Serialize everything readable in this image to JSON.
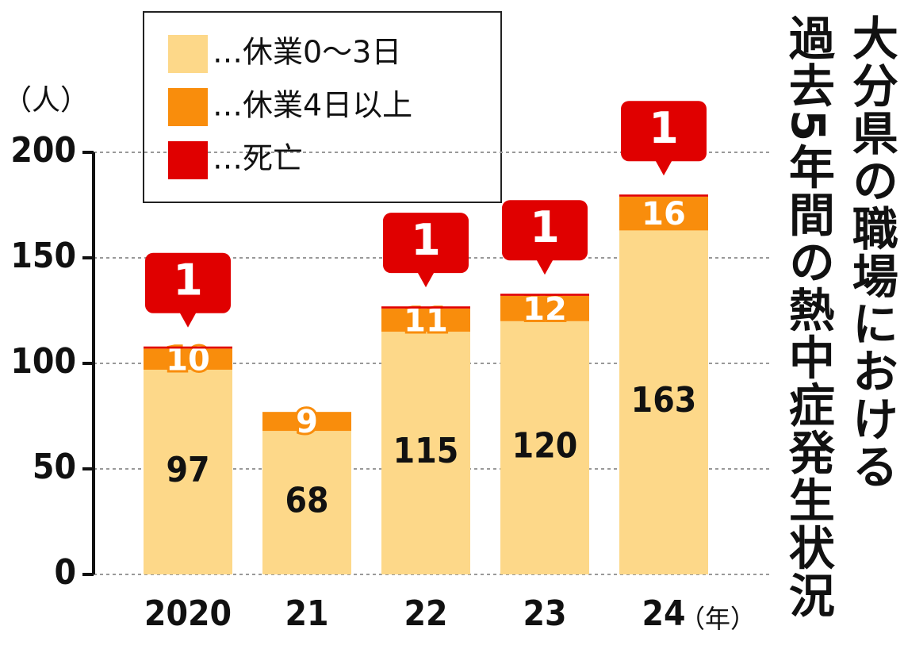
{
  "chart_data": {
    "type": "stacked_bar",
    "title": "大分県の職場における",
    "subtitle": "過去5年間の熱中症発生状況",
    "y_label": "（人）",
    "x_label": "（年）",
    "categories": [
      "2020",
      "21",
      "22",
      "23",
      "24"
    ],
    "series": [
      {
        "name": "…休業0～3日",
        "color": "#fdd889",
        "values": [
          97,
          68,
          115,
          120,
          163
        ]
      },
      {
        "name": "…休業4日以上",
        "color": "#f98d0c",
        "values": [
          10,
          9,
          11,
          12,
          16
        ]
      },
      {
        "name": "…死亡",
        "color": "#e00000",
        "values": [
          1,
          null,
          1,
          1,
          1
        ]
      }
    ],
    "ylim": [
      0,
      200
    ],
    "yticks": [
      0,
      50,
      100,
      150,
      200
    ],
    "grid": true
  }
}
